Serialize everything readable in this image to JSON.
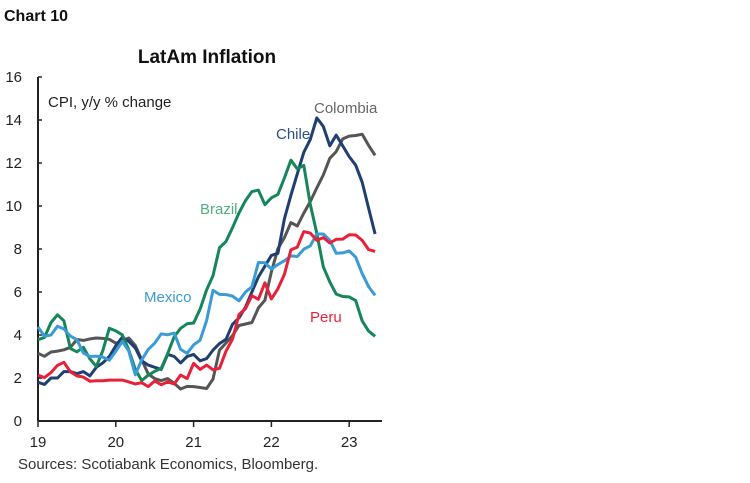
{
  "header": {
    "chart_number": "Chart 10"
  },
  "chart_data": {
    "type": "line",
    "title": "LatAm Inflation",
    "ylabel": "CPI, y/y % change",
    "xlabel": "",
    "source": "Sources: Scotiabank Economics, Bloomberg.",
    "x_start": "2019-01",
    "x_end": "2023-05",
    "frequency": "monthly",
    "xlim": [
      "2019-01",
      "2023-05"
    ],
    "ylim": [
      0,
      16
    ],
    "x_ticks": [
      "19",
      "20",
      "21",
      "22",
      "23"
    ],
    "y_ticks": [
      "0",
      "2",
      "4",
      "6",
      "8",
      "10",
      "12",
      "14",
      "16"
    ],
    "grid": false,
    "legend": "inline labels",
    "series": [
      {
        "name": "Colombia",
        "color": "#555555",
        "label_color": "#666666",
        "values": [
          3.15,
          3.01,
          3.21,
          3.25,
          3.31,
          3.43,
          3.79,
          3.75,
          3.82,
          3.86,
          3.84,
          3.8,
          3.62,
          3.72,
          3.86,
          3.51,
          2.85,
          2.19,
          1.97,
          1.88,
          1.97,
          1.75,
          1.49,
          1.61,
          1.6,
          1.56,
          1.51,
          1.95,
          3.3,
          3.63,
          3.97,
          4.44,
          4.51,
          4.58,
          5.26,
          5.62,
          6.94,
          8.01,
          8.53,
          9.23,
          9.07,
          9.67,
          10.21,
          10.84,
          11.44,
          12.22,
          12.53,
          13.12,
          13.25,
          13.28,
          13.34,
          12.82,
          12.36
        ]
      },
      {
        "name": "Chile",
        "color": "#1f3f73",
        "label_color": "#2b4f86",
        "values": [
          1.8,
          1.7,
          2.0,
          2.0,
          2.3,
          2.3,
          2.2,
          2.3,
          2.1,
          2.5,
          2.7,
          3.0,
          3.5,
          3.9,
          3.7,
          3.4,
          2.8,
          2.6,
          2.5,
          2.4,
          3.1,
          3.0,
          2.7,
          3.0,
          3.1,
          2.8,
          2.9,
          3.3,
          3.6,
          3.8,
          4.5,
          4.8,
          5.3,
          6.0,
          6.7,
          7.2,
          7.7,
          7.8,
          9.4,
          10.5,
          11.5,
          12.5,
          13.1,
          14.1,
          13.7,
          12.8,
          13.3,
          12.8,
          12.3,
          11.9,
          11.1,
          9.9,
          8.7
        ]
      },
      {
        "name": "Brazil",
        "color": "#16865a",
        "label_color": "#4fae82",
        "values": [
          3.78,
          3.89,
          4.58,
          4.94,
          4.66,
          3.37,
          3.22,
          3.43,
          2.89,
          2.54,
          3.27,
          4.31,
          4.19,
          4.01,
          3.3,
          2.4,
          1.88,
          2.13,
          2.31,
          2.44,
          3.14,
          3.92,
          4.31,
          4.52,
          4.56,
          5.2,
          6.1,
          6.76,
          8.06,
          8.35,
          8.99,
          9.68,
          10.25,
          10.67,
          10.74,
          10.06,
          10.38,
          10.54,
          11.3,
          12.13,
          11.73,
          11.89,
          10.07,
          8.73,
          7.17,
          6.47,
          5.9,
          5.79,
          5.77,
          5.6,
          4.65,
          4.18,
          3.94
        ]
      },
      {
        "name": "Mexico",
        "color": "#3b9bd6",
        "label_color": "#3b9bd6",
        "values": [
          4.37,
          3.94,
          4.0,
          4.41,
          4.28,
          3.95,
          3.78,
          3.16,
          3.0,
          3.02,
          2.97,
          2.83,
          3.24,
          3.7,
          3.25,
          2.15,
          2.84,
          3.33,
          3.62,
          4.05,
          4.01,
          4.09,
          3.33,
          3.15,
          3.54,
          3.76,
          4.67,
          6.08,
          5.89,
          5.88,
          5.81,
          5.59,
          6.0,
          6.24,
          7.37,
          7.36,
          7.07,
          7.28,
          7.45,
          7.68,
          7.65,
          7.99,
          8.15,
          8.7,
          8.7,
          8.41,
          7.8,
          7.82,
          7.91,
          7.62,
          6.85,
          6.25,
          5.84
        ]
      },
      {
        "name": "Peru",
        "color": "#e8203a",
        "label_color": "#e8203a",
        "values": [
          2.13,
          2.02,
          2.25,
          2.59,
          2.73,
          2.29,
          2.1,
          2.04,
          1.85,
          1.87,
          1.87,
          1.9,
          1.9,
          1.9,
          1.82,
          1.72,
          1.78,
          1.6,
          1.86,
          1.69,
          1.82,
          1.72,
          2.14,
          1.97,
          2.68,
          2.4,
          2.6,
          2.38,
          2.45,
          3.25,
          3.81,
          4.95,
          5.23,
          5.83,
          5.66,
          6.43,
          5.68,
          6.15,
          6.82,
          7.96,
          8.09,
          8.81,
          8.74,
          8.4,
          8.53,
          8.28,
          8.45,
          8.46,
          8.66,
          8.65,
          8.4,
          7.97,
          7.89
        ]
      }
    ]
  }
}
